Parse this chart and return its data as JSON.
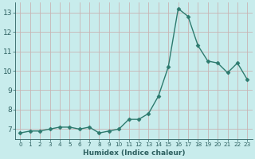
{
  "x": [
    0,
    1,
    2,
    3,
    4,
    5,
    6,
    7,
    8,
    9,
    10,
    11,
    12,
    13,
    14,
    15,
    16,
    17,
    18,
    19,
    20,
    21,
    22,
    23
  ],
  "y": [
    6.8,
    6.9,
    6.9,
    7.0,
    7.1,
    7.1,
    7.0,
    7.1,
    6.8,
    6.9,
    7.0,
    7.5,
    7.5,
    7.8,
    8.7,
    10.2,
    13.2,
    12.8,
    11.3,
    10.5,
    10.4,
    9.9,
    10.4,
    9.55
  ],
  "line_color": "#2d7a6e",
  "marker_color": "#2d7a6e",
  "bg_color": "#c8ecec",
  "grid_color": "#c8b4b4",
  "xlabel": "Humidex (Indice chaleur)",
  "ylim": [
    6.5,
    13.5
  ],
  "xlim": [
    -0.5,
    23.5
  ],
  "yticks": [
    7,
    8,
    9,
    10,
    11,
    12,
    13
  ],
  "xtick_labels": [
    "0",
    "1",
    "2",
    "3",
    "4",
    "5",
    "6",
    "7",
    "8",
    "9",
    "10",
    "11",
    "12",
    "13",
    "14",
    "15",
    "16",
    "17",
    "18",
    "19",
    "20",
    "21",
    "22",
    "23"
  ],
  "font_color": "#2d6060",
  "line_width": 1.0,
  "marker_size": 2.5
}
